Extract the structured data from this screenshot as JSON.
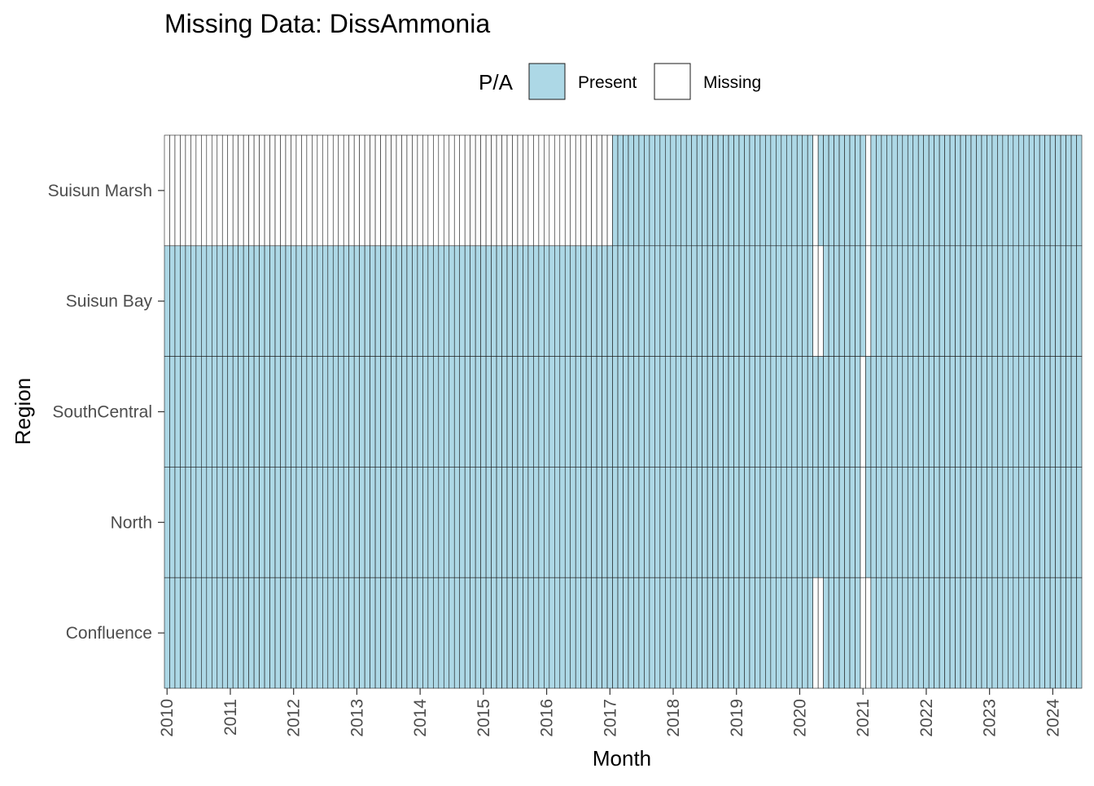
{
  "chart_data": {
    "type": "heatmap",
    "title": "Missing Data: DissAmmonia",
    "xlabel": "Month",
    "ylabel": "Region",
    "legend": {
      "title": "P/A",
      "placement": "top",
      "entries": [
        {
          "label": "Present",
          "color": "#add8e6"
        },
        {
          "label": "Missing",
          "color": "#ffffff"
        }
      ]
    },
    "x_start": "2010-01",
    "x_end": "2024-06",
    "x_ticks": [
      "2010",
      "2011",
      "2012",
      "2013",
      "2014",
      "2015",
      "2016",
      "2017",
      "2018",
      "2019",
      "2020",
      "2021",
      "2022",
      "2023",
      "2024"
    ],
    "regions": [
      "Suisun Marsh",
      "Suisun Bay",
      "SouthCentral",
      "North",
      "Confluence"
    ],
    "missing_months": {
      "Suisun Marsh": [
        "2010-01",
        "2010-02",
        "2010-03",
        "2010-04",
        "2010-05",
        "2010-06",
        "2010-07",
        "2010-08",
        "2010-09",
        "2010-10",
        "2010-11",
        "2010-12",
        "2011-01",
        "2011-02",
        "2011-03",
        "2011-04",
        "2011-05",
        "2011-06",
        "2011-07",
        "2011-08",
        "2011-09",
        "2011-10",
        "2011-11",
        "2011-12",
        "2012-01",
        "2012-02",
        "2012-03",
        "2012-04",
        "2012-05",
        "2012-06",
        "2012-07",
        "2012-08",
        "2012-09",
        "2012-10",
        "2012-11",
        "2012-12",
        "2013-01",
        "2013-02",
        "2013-03",
        "2013-04",
        "2013-05",
        "2013-06",
        "2013-07",
        "2013-08",
        "2013-09",
        "2013-10",
        "2013-11",
        "2013-12",
        "2014-01",
        "2014-02",
        "2014-03",
        "2014-04",
        "2014-05",
        "2014-06",
        "2014-07",
        "2014-08",
        "2014-09",
        "2014-10",
        "2014-11",
        "2014-12",
        "2015-01",
        "2015-02",
        "2015-03",
        "2015-04",
        "2015-05",
        "2015-06",
        "2015-07",
        "2015-08",
        "2015-09",
        "2015-10",
        "2015-11",
        "2015-12",
        "2016-01",
        "2016-02",
        "2016-03",
        "2016-04",
        "2016-05",
        "2016-06",
        "2016-07",
        "2016-08",
        "2016-09",
        "2016-10",
        "2016-11",
        "2016-12",
        "2017-01",
        "2020-04",
        "2021-02"
      ],
      "Suisun Bay": [
        "2020-04",
        "2020-05",
        "2021-02"
      ],
      "SouthCentral": [
        "2021-01"
      ],
      "North": [
        "2021-01"
      ],
      "Confluence": [
        "2020-04",
        "2020-05",
        "2021-01",
        "2021-02"
      ]
    },
    "colors": {
      "present": "#add8e6",
      "missing": "#ffffff",
      "outline": "#1a1a1a"
    },
    "grid": false
  }
}
